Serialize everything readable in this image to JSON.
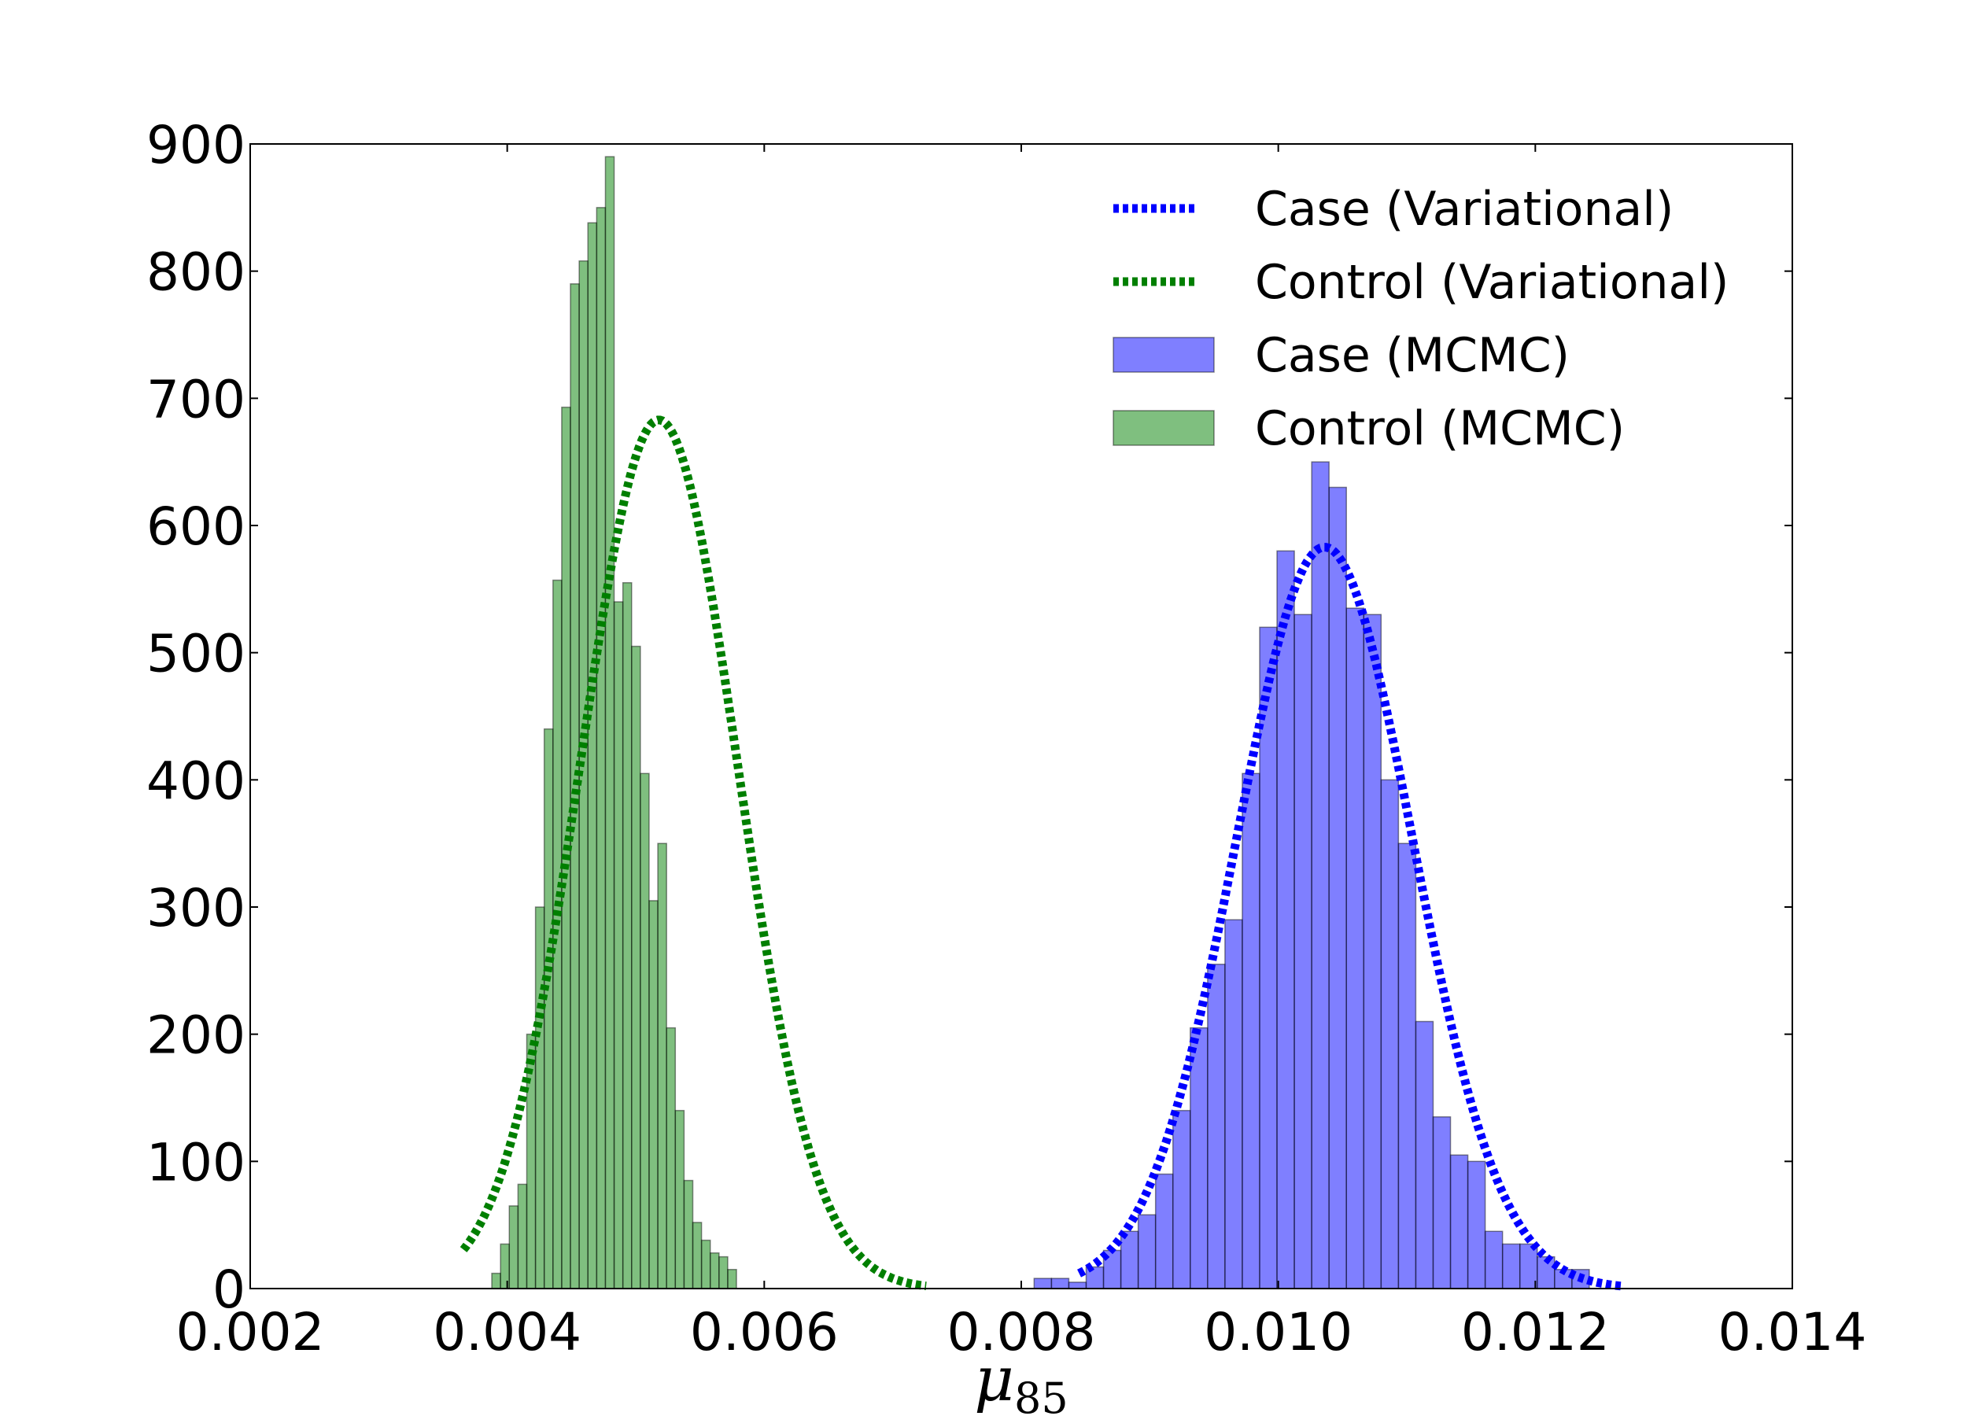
{
  "chart_data": {
    "type": "bar",
    "xlabel": "μ",
    "xlabel_subscript": "85",
    "ylabel": "",
    "title": "",
    "xlim": [
      0.002,
      0.014
    ],
    "ylim": [
      0,
      900
    ],
    "x_ticks": [
      "0.002",
      "0.004",
      "0.006",
      "0.008",
      "0.010",
      "0.012",
      "0.014"
    ],
    "y_ticks": [
      "0",
      "100",
      "200",
      "300",
      "400",
      "500",
      "600",
      "700",
      "800",
      "900"
    ],
    "legend_position": "top-right",
    "legend": [
      {
        "label": "Case (Variational)",
        "kind": "dashed-line",
        "color": "#0000ff"
      },
      {
        "label": "Control (Variational)",
        "kind": "dashed-line",
        "color": "#007f00"
      },
      {
        "label": "Case (MCMC)",
        "kind": "bar",
        "color": "#0000ff"
      },
      {
        "label": "Control (MCMC)",
        "kind": "bar",
        "color": "#008000"
      }
    ],
    "histograms": [
      {
        "name": "Control (MCMC)",
        "color": "#008000",
        "bin_start": 0.00388,
        "bin_width": 6.8e-05,
        "counts": [
          12,
          35,
          65,
          82,
          200,
          300,
          440,
          557,
          693,
          790,
          808,
          838,
          850,
          890,
          540,
          555,
          505,
          405,
          305,
          350,
          205,
          140,
          85,
          52,
          38,
          28,
          25,
          15
        ]
      },
      {
        "name": "Case (MCMC)",
        "color": "#0000ff",
        "bin_start": 0.0081,
        "bin_width": 0.000135,
        "counts": [
          8,
          8,
          5,
          17,
          30,
          45,
          58,
          90,
          140,
          205,
          255,
          290,
          405,
          520,
          580,
          530,
          650,
          630,
          535,
          530,
          400,
          350,
          210,
          135,
          105,
          100,
          45,
          35,
          35,
          25,
          15,
          15
        ]
      }
    ],
    "curves": [
      {
        "name": "Case (Variational)",
        "color": "#0000ff",
        "style": "dashed",
        "mean": 0.01036,
        "sd": 0.000685,
        "peak": 583,
        "x_range": [
          0.00845,
          0.01267
        ]
      },
      {
        "name": "Control (Variational)",
        "color": "#007f00",
        "style": "dashed",
        "mean": 0.00518,
        "sd": 0.00061,
        "peak": 683,
        "x_range": [
          0.00366,
          0.00726
        ]
      }
    ]
  }
}
